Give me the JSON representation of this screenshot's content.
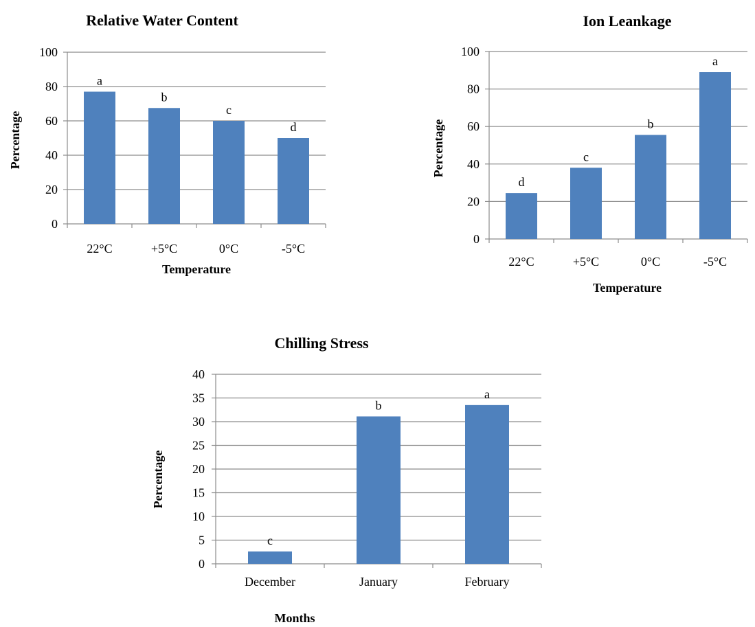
{
  "chart_data": [
    {
      "id": "rwc",
      "type": "bar",
      "title": "Relative Water Content",
      "xlabel": "Temperature",
      "ylabel": "Percentage",
      "categories": [
        "22°C",
        "+5°C",
        "0°C",
        "-5°C"
      ],
      "values": [
        77,
        67.5,
        60,
        50
      ],
      "labels": [
        "a",
        "b",
        "c",
        "d"
      ],
      "yticks": [
        "0",
        "20",
        "40",
        "60",
        "80",
        "100"
      ],
      "ylim": [
        0,
        100
      ],
      "ystep": 20,
      "grid": true,
      "bar_color": "#4f81bd"
    },
    {
      "id": "ion",
      "type": "bar",
      "title": "Ion Leankage",
      "xlabel": "Temperature",
      "ylabel": "Percentage",
      "categories": [
        "22°C",
        "+5°C",
        "0°C",
        "-5°C"
      ],
      "values": [
        24.5,
        38,
        55.5,
        89
      ],
      "labels": [
        "d",
        "c",
        "b",
        "a"
      ],
      "yticks": [
        "0",
        "20",
        "40",
        "60",
        "80",
        "100"
      ],
      "ylim": [
        0,
        100
      ],
      "ystep": 20,
      "grid": true,
      "bar_color": "#4f81bd"
    },
    {
      "id": "chill",
      "type": "bar",
      "title": "Chilling Stress",
      "xlabel": "Months",
      "ylabel": "Percentage",
      "categories": [
        "December",
        "January",
        "February"
      ],
      "values": [
        2.6,
        31.1,
        33.5
      ],
      "labels": [
        "c",
        "b",
        "a"
      ],
      "yticks": [
        "0",
        "5",
        "10",
        "15",
        "20",
        "25",
        "30",
        "35",
        "40"
      ],
      "ylim": [
        0,
        40
      ],
      "ystep": 5,
      "grid": true,
      "bar_color": "#4f81bd"
    }
  ]
}
